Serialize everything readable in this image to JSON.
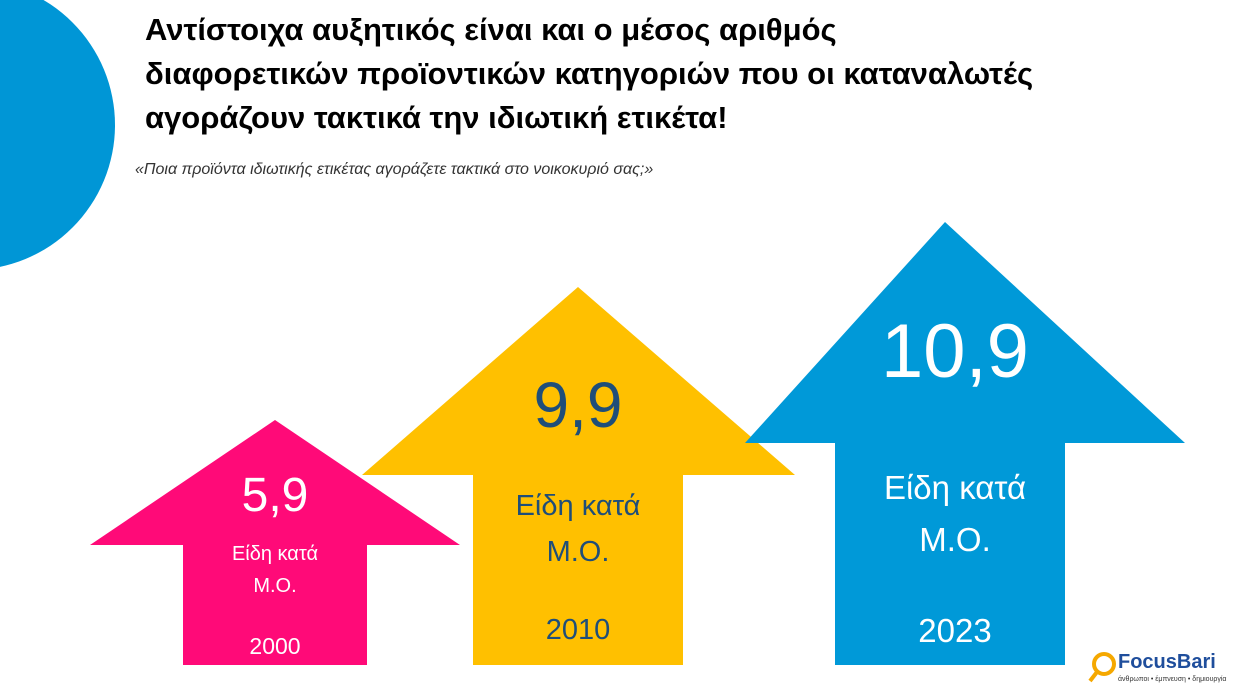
{
  "header": {
    "title_lines": [
      "Αντίστοιχα αυξητικός είναι και ο μέσος αριθμός",
      "διαφορετικών προϊοντικών κατηγοριών που οι καταναλωτές",
      "αγοράζουν τακτικά την ιδιωτική ετικέτα!"
    ],
    "subtitle": "«Ποια προϊόντα ιδιωτικής ετικέτας αγοράζετε τακτικά στο νοικοκυριό σας;»"
  },
  "arrows": [
    {
      "value": "5,9",
      "label": "Είδη κατά Μ.Ο.",
      "year": "2000"
    },
    {
      "value": "9,9",
      "label": "Είδη κατά Μ.Ο.",
      "year": "2010"
    },
    {
      "value": "10,9",
      "label": "Είδη κατά Μ.Ο.",
      "year": "2023"
    }
  ],
  "logo": {
    "name": "FocusBari",
    "tagline": "άνθρωποι • έμπνευση • δημιουργία"
  }
}
